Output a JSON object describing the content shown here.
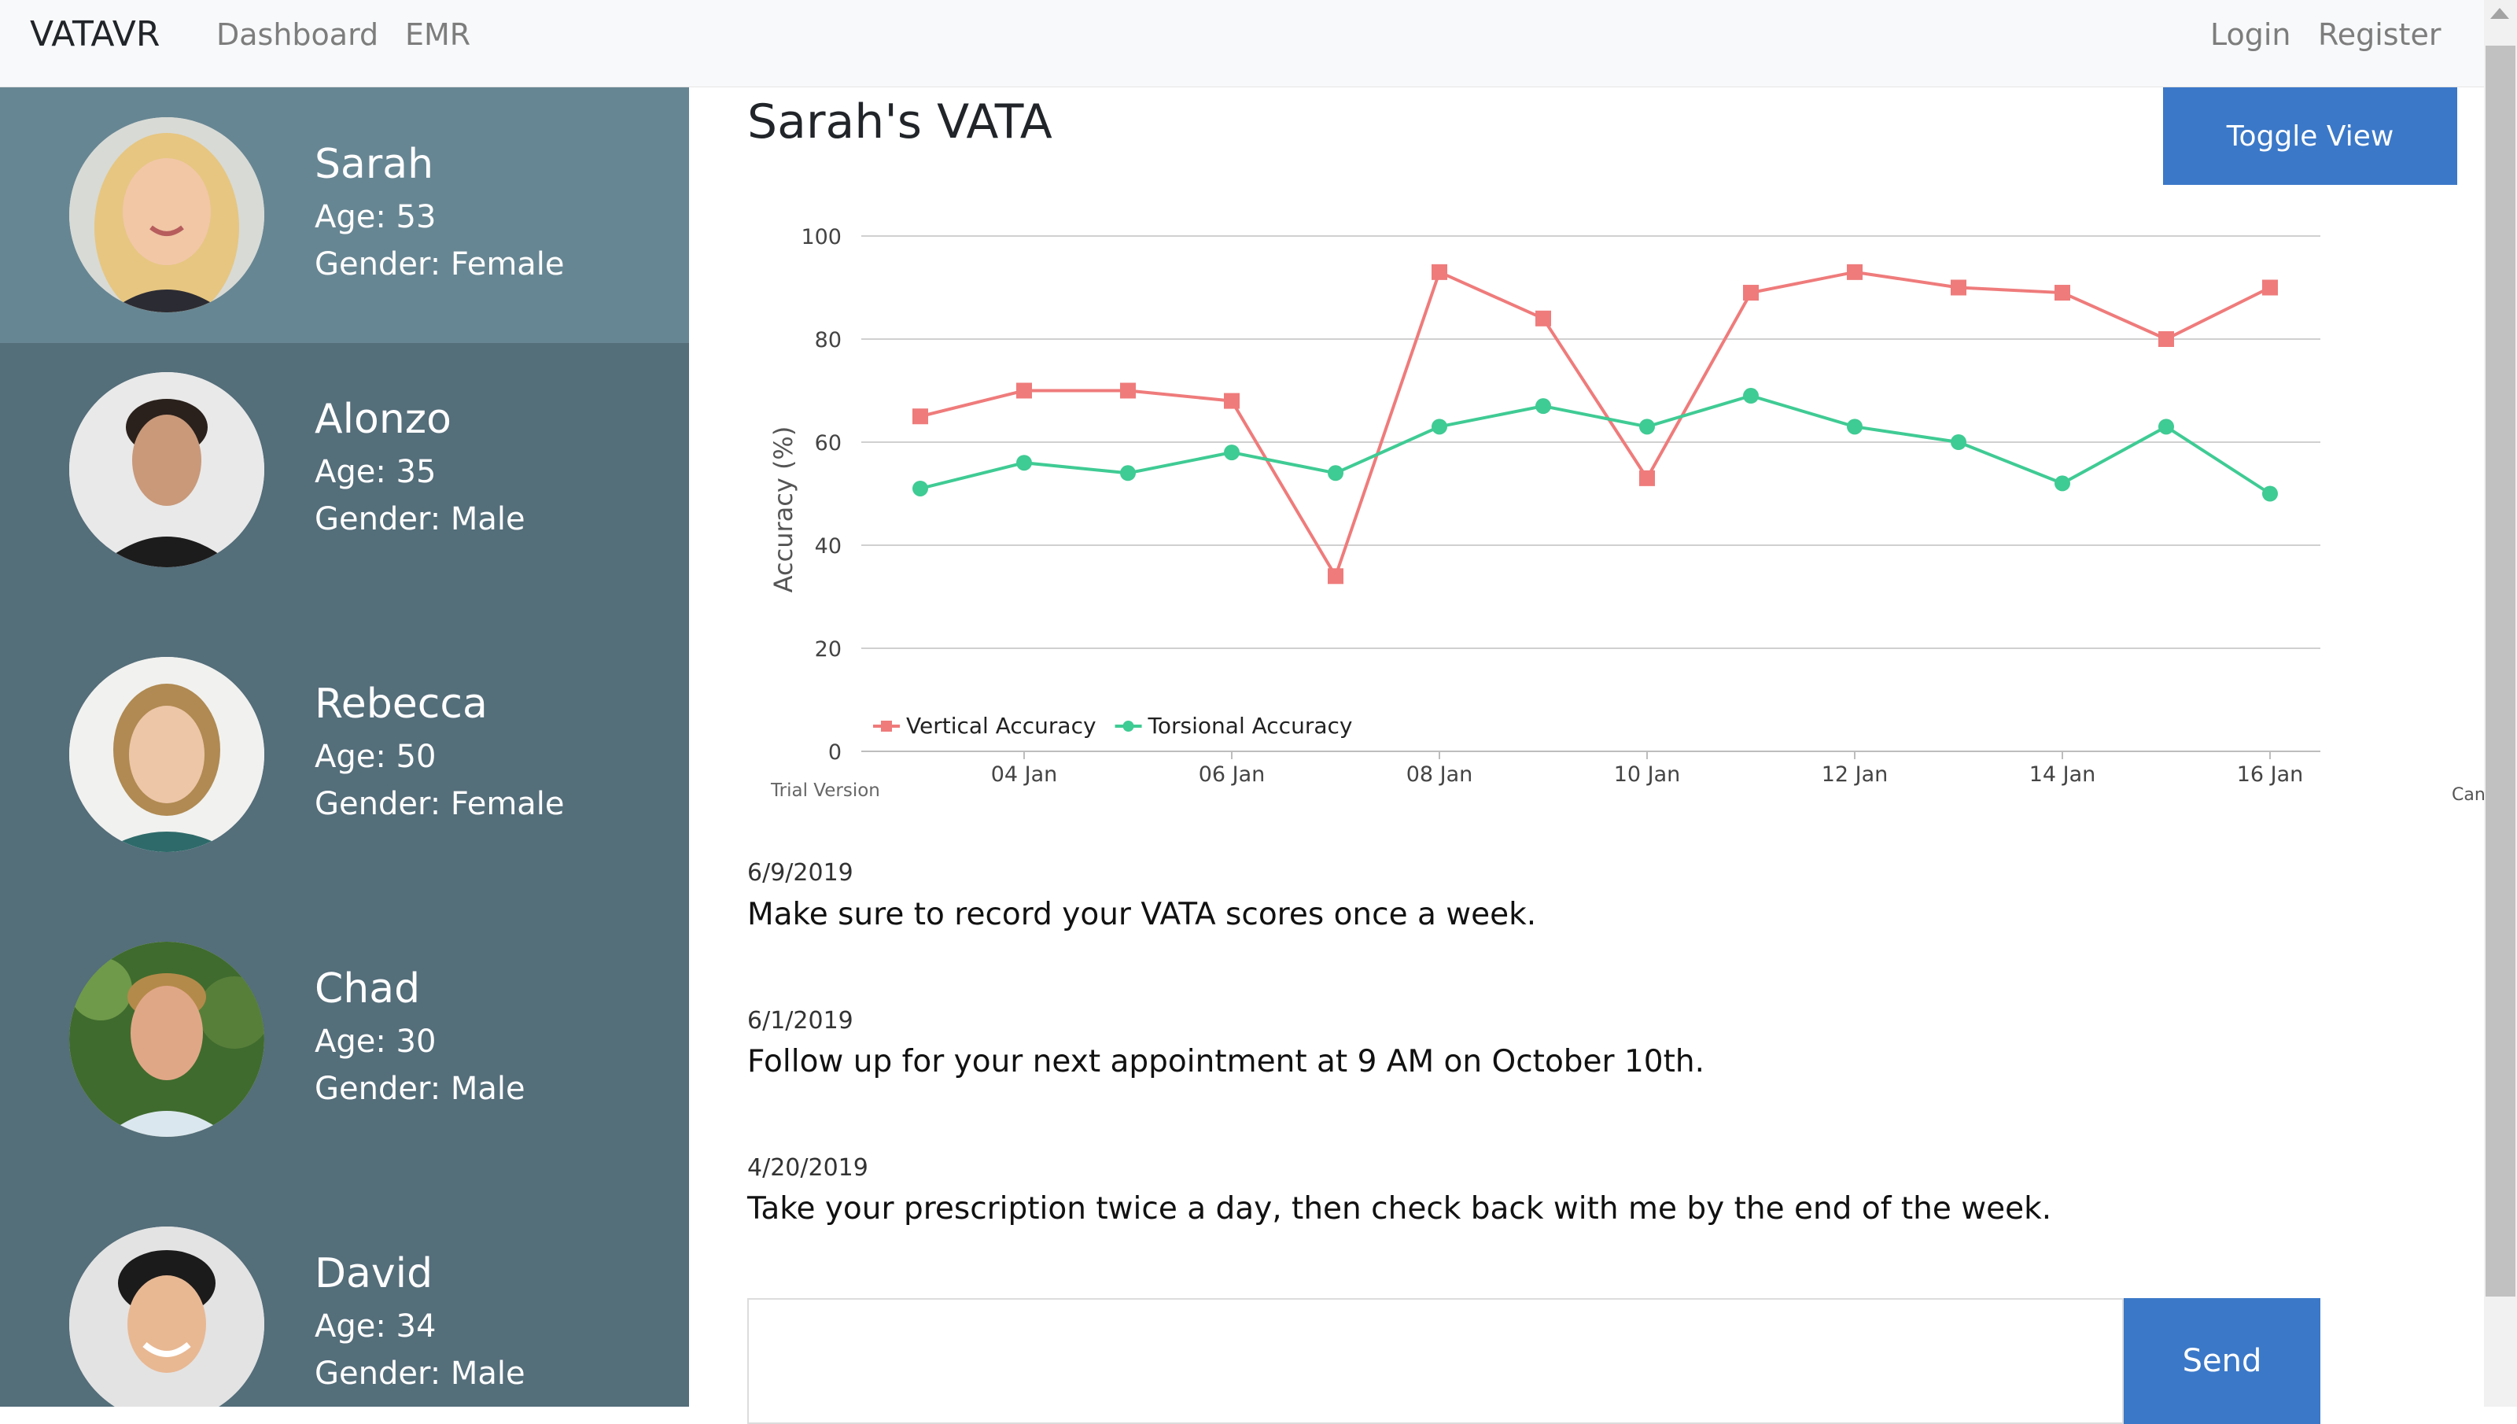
{
  "nav": {
    "brand": "VATAVR",
    "links": [
      "Dashboard",
      "EMR"
    ],
    "right_links": [
      "Login",
      "Register"
    ]
  },
  "patients": [
    {
      "name": "Sarah",
      "age": "Age: 53",
      "gender": "Gender: Female"
    },
    {
      "name": "Alonzo",
      "age": "Age: 35",
      "gender": "Gender: Male"
    },
    {
      "name": "Rebecca",
      "age": "Age: 50",
      "gender": "Gender: Female"
    },
    {
      "name": "Chad",
      "age": "Age: 30",
      "gender": "Gender: Male"
    },
    {
      "name": "David",
      "age": "Age: 34",
      "gender": "Gender: Male"
    }
  ],
  "main": {
    "title": "Sarah's VATA",
    "toggle_label": "Toggle View",
    "chart_watermark": "Trial Version",
    "chart_side_label": "Can"
  },
  "notes": [
    {
      "date": "6/9/2019",
      "text": "Make sure to record your VATA scores once a week."
    },
    {
      "date": "6/1/2019",
      "text": "Follow up for your next appointment at 9 AM on October 10th."
    },
    {
      "date": "4/20/2019",
      "text": "Take your prescription twice a day, then check back with me by the end of the week."
    }
  ],
  "message": {
    "input_value": "",
    "send_label": "Send"
  },
  "colors": {
    "accent": "#3b78c8",
    "sidebar": "#546e7a",
    "sidebar_active": "#678693",
    "vertical_series": "#ef7b7b",
    "torsional_series": "#3fcb94"
  },
  "chart_data": {
    "type": "line",
    "title": "",
    "xlabel": "",
    "ylabel": "Accuracy (%)",
    "ylim": [
      0,
      100
    ],
    "yticks": [
      0,
      20,
      40,
      60,
      80,
      100
    ],
    "x": [
      "03 Jan",
      "04 Jan",
      "05 Jan",
      "06 Jan",
      "07 Jan",
      "08 Jan",
      "09 Jan",
      "10 Jan",
      "11 Jan",
      "12 Jan",
      "13 Jan",
      "14 Jan",
      "15 Jan",
      "16 Jan"
    ],
    "xticks": [
      "04 Jan",
      "06 Jan",
      "08 Jan",
      "10 Jan",
      "12 Jan",
      "14 Jan",
      "16 Jan"
    ],
    "grid": true,
    "legend_position": "bottom-left",
    "series": [
      {
        "name": "Vertical Accuracy",
        "marker": "square",
        "color": "#ef7b7b",
        "values": [
          65,
          70,
          70,
          68,
          34,
          93,
          84,
          53,
          89,
          93,
          90,
          89,
          80,
          90
        ]
      },
      {
        "name": "Torsional Accuracy",
        "marker": "circle",
        "color": "#3fcb94",
        "values": [
          51,
          56,
          54,
          58,
          54,
          63,
          67,
          63,
          69,
          63,
          60,
          52,
          63,
          50
        ]
      }
    ]
  }
}
